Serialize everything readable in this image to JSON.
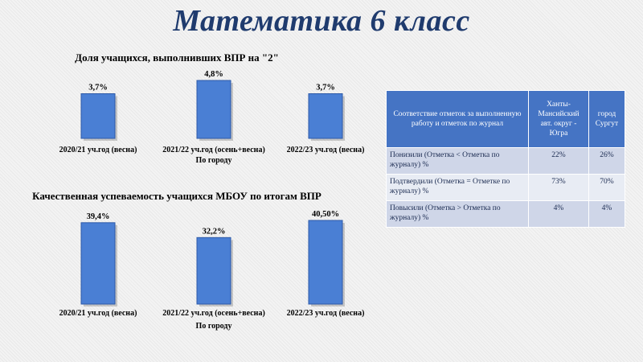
{
  "page_title": "Математика 6 класс",
  "chart_data": [
    {
      "type": "bar",
      "title": "Доля учащихся, выполнивших ВПР на \"2\"",
      "xlabel": "По городу",
      "categories": [
        "2020/21 уч.год (весна)",
        "2021/22 уч.год (осень+весна)",
        "2022/23 уч.год (весна)"
      ],
      "values": [
        3.7,
        4.8,
        3.7
      ],
      "value_labels": [
        "3,7%",
        "4,8%",
        "3,7%"
      ],
      "ylim": [
        0,
        4.8
      ],
      "grid": false,
      "bar_color": "#4a7fd4"
    },
    {
      "type": "bar",
      "title": "Качественная успеваемость учащихся МБОУ по итогам ВПР",
      "xlabel": "По городу",
      "categories": [
        "2020/21 уч.год (весна)",
        "2021/22 уч.год (осень+весна)",
        "2022/23 уч.год (весна)"
      ],
      "values": [
        39.4,
        32.2,
        40.5
      ],
      "value_labels": [
        "39,4%",
        "32,2%",
        "40,50%"
      ],
      "ylim": [
        0,
        40.5
      ],
      "grid": false,
      "bar_color": "#4a7fd4"
    }
  ],
  "table": {
    "headers": [
      "Соответствие отметок за выполненную работу и отметок по журнал",
      "Ханты-Мансийский авт. округ - Югра",
      "город Сургут"
    ],
    "rows": [
      {
        "label": "Понизили (Отметка < Отметка по журналу) %",
        "values": [
          "22%",
          "26%"
        ]
      },
      {
        "label": "Подтвердили (Отметка = Отметке по журналу) %",
        "values": [
          "73%",
          "70%"
        ]
      },
      {
        "label": "Повысили (Отметка > Отметка по журналу) %",
        "values": [
          "4%",
          "4%"
        ]
      }
    ]
  },
  "colors": {
    "title": "#1f3b6e",
    "bar": "#4a7fd4",
    "bar_edge": "#2d5aa8",
    "table_header": "#4574c4",
    "table_row_odd": "#cfd6e8",
    "table_row_even": "#e8ecf4"
  }
}
